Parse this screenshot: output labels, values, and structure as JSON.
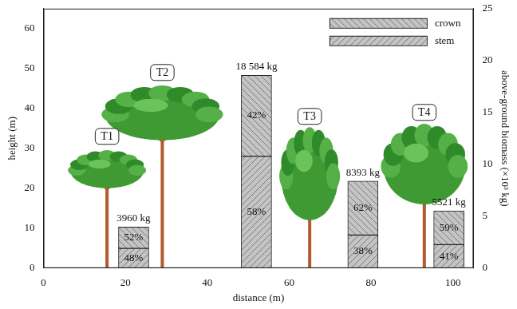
{
  "chart_data": {
    "type": "bar",
    "stacked": true,
    "x_label": "distance (m)",
    "y_label": "height (m)",
    "y2_label": "above-ground biomass (×10³ kg)",
    "xlim": [
      0,
      105
    ],
    "xticks": [
      0,
      20,
      40,
      60,
      80,
      100
    ],
    "ylim": [
      0,
      65
    ],
    "yticks": [
      0,
      10,
      20,
      30,
      40,
      50,
      60
    ],
    "y2lim": [
      0,
      25
    ],
    "y2ticks": [
      0,
      5,
      10,
      15,
      20,
      25
    ],
    "grid": false,
    "legend": "upper right",
    "x": [
      22,
      52,
      78,
      99
    ],
    "series": [
      {
        "name": "stem",
        "color": "#c4c4c4",
        "axis": "y2",
        "values": [
          1.9,
          10.78,
          3.19,
          2.26
        ],
        "percent_labels": [
          "48%",
          "58%",
          "38%",
          "41%"
        ]
      },
      {
        "name": "crown",
        "color": "#c4c4c4",
        "axis": "y2",
        "values": [
          2.06,
          7.8,
          5.2,
          3.26
        ],
        "percent_labels": [
          "52%",
          "42%",
          "62%",
          "59%"
        ]
      }
    ],
    "total_labels": [
      "3960 kg",
      "18 584 kg",
      "8393 kg",
      "5521 kg"
    ],
    "trees": [
      {
        "label": "T1",
        "x": 15.5,
        "height": 29,
        "crown_base": 20,
        "crown_width": 18
      },
      {
        "label": "T2",
        "x": 29,
        "height": 45,
        "crown_base": 32,
        "crown_width": 28
      },
      {
        "label": "T3",
        "x": 65,
        "height": 34,
        "crown_base": 12,
        "crown_width": 14
      },
      {
        "label": "T4",
        "x": 93,
        "height": 35,
        "crown_base": 16,
        "crown_width": 20
      }
    ]
  }
}
